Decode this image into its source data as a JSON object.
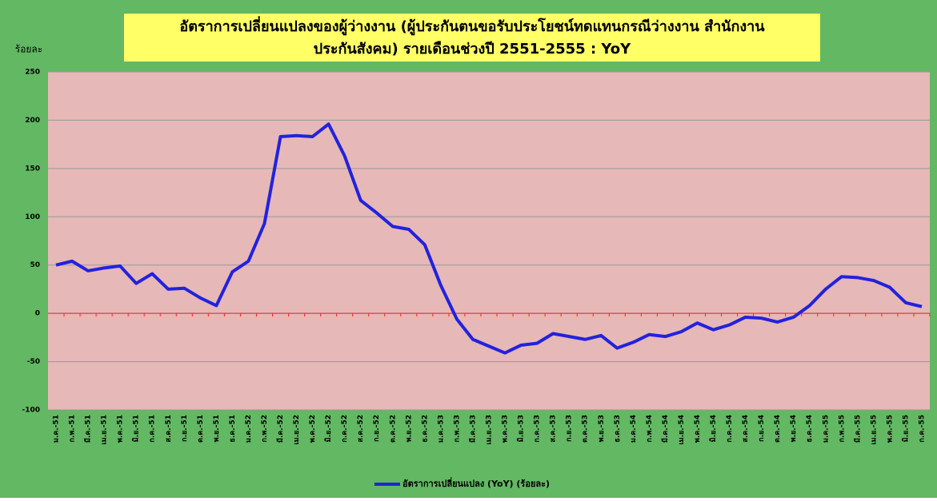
{
  "chart_data": {
    "type": "line",
    "title": [
      "อัตราการเปลี่ยนแปลงของผู้ว่างงาน (ผู้ประกันตนขอรับประโยชน์ทดแทนกรณีว่างงาน สำนักงาน",
      "ประกันสังคม) รายเดือนช่วงปี 2551-2555 : YoY"
    ],
    "y_label": "ร้อยละ",
    "categories": [
      "ม.ค.-51",
      "ก.พ.-51",
      "มี.ค.-51",
      "เม.ย.-51",
      "พ.ค.-51",
      "มิ.ย.-51",
      "ก.ค.-51",
      "ส.ค.-51",
      "ก.ย.-51",
      "ต.ค.-51",
      "พ.ย.-51",
      "ธ.ค.-51",
      "ม.ค.-52",
      "ก.พ.-52",
      "มี.ค.-52",
      "เม.ย.-52",
      "พ.ค.-52",
      "มิ.ย.-52",
      "ก.ค.-52",
      "ส.ค.-52",
      "ก.ย.-52",
      "ต.ค.-52",
      "พ.ย.-52",
      "ธ.ค.-52",
      "ม.ค.-53",
      "ก.พ.-53",
      "มี.ค.-53",
      "เม.ย.-53",
      "พ.ค.-53",
      "มิ.ย.-53",
      "ก.ค.-53",
      "ส.ค.-53",
      "ก.ย.-53",
      "ต.ค.-53",
      "พ.ย.-53",
      "ธ.ค.-53",
      "ม.ค.-54",
      "ก.พ.-54",
      "มี.ค.-54",
      "เม.ย.-54",
      "พ.ค.-54",
      "มิ.ย.-54",
      "ก.ค.-54",
      "ส.ค.-54",
      "ก.ย.-54",
      "ต.ค.-54",
      "พ.ย.-54",
      "ธ.ค.-54",
      "ม.ค.-55",
      "ก.พ.-55",
      "มี.ค.-55",
      "เม.ย.-55",
      "พ.ค.-55",
      "มิ.ย.-55",
      "ก.ค.-55"
    ],
    "series": [
      {
        "name": "อัตราการเปลี่ยนแปลง (YoY) (ร้อยละ)",
        "color": "#2222dd",
        "values": [
          50,
          54,
          44,
          47,
          49,
          31,
          41,
          25,
          26,
          16,
          8,
          43,
          54,
          93,
          183,
          184,
          183,
          196,
          163,
          117,
          104,
          90,
          87,
          71,
          29,
          -6,
          -27,
          -34,
          -41,
          -33,
          -31,
          -21,
          -24,
          -27,
          -23,
          -36,
          -30,
          -22,
          -24,
          -19,
          -10,
          -17,
          -12,
          -4,
          -5,
          -9,
          -4,
          8,
          25,
          38,
          37,
          34,
          27,
          11,
          7
        ]
      }
    ],
    "ylim": [
      -100,
      250
    ],
    "yticks": [
      -100,
      -50,
      0,
      50,
      100,
      150,
      200,
      250
    ],
    "grid": true
  }
}
